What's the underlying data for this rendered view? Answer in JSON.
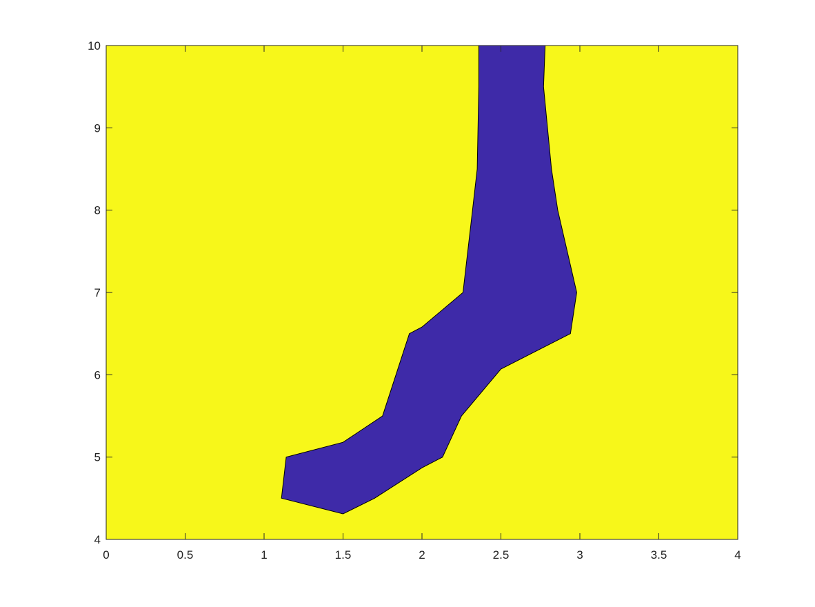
{
  "chart_data": {
    "type": "area",
    "title": "",
    "xlabel": "",
    "ylabel": "",
    "xlim": [
      0,
      4
    ],
    "ylim": [
      4,
      10
    ],
    "grid": false,
    "x_ticks": [
      "0",
      "0.5",
      "1",
      "1.5",
      "2",
      "2.5",
      "3",
      "3.5",
      "4"
    ],
    "y_ticks": [
      "4",
      "5",
      "6",
      "7",
      "8",
      "9",
      "10"
    ],
    "colors": {
      "background": "#f7f71a",
      "region": "#3e2aa8",
      "axis": "#262626"
    },
    "region": {
      "boundary": [
        {
          "x": 2.36,
          "y": 10.0
        },
        {
          "x": 2.78,
          "y": 10.0
        },
        {
          "x": 2.77,
          "y": 9.5
        },
        {
          "x": 2.82,
          "y": 8.5
        },
        {
          "x": 2.86,
          "y": 8.0
        },
        {
          "x": 2.98,
          "y": 7.0
        },
        {
          "x": 2.94,
          "y": 6.5
        },
        {
          "x": 2.5,
          "y": 6.07
        },
        {
          "x": 2.25,
          "y": 5.5
        },
        {
          "x": 2.13,
          "y": 5.0
        },
        {
          "x": 2.0,
          "y": 4.87
        },
        {
          "x": 1.7,
          "y": 4.5
        },
        {
          "x": 1.5,
          "y": 4.31
        },
        {
          "x": 1.11,
          "y": 4.5
        },
        {
          "x": 1.14,
          "y": 5.0
        },
        {
          "x": 1.5,
          "y": 5.18
        },
        {
          "x": 1.75,
          "y": 5.5
        },
        {
          "x": 1.92,
          "y": 6.5
        },
        {
          "x": 2.0,
          "y": 6.58
        },
        {
          "x": 2.26,
          "y": 7.0
        },
        {
          "x": 2.32,
          "y": 8.0
        },
        {
          "x": 2.35,
          "y": 8.5
        },
        {
          "x": 2.36,
          "y": 9.5
        }
      ]
    }
  }
}
